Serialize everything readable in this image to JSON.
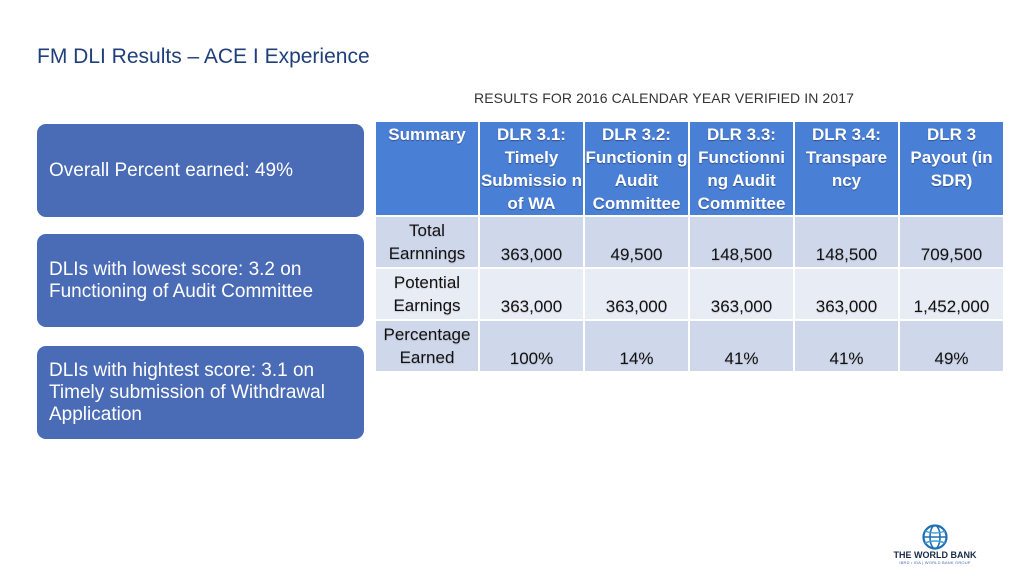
{
  "header": {
    "title": "FM DLI Results – ACE I Experience",
    "subtitle": "RESULTS FOR 2016 CALENDAR YEAR VERIFIED IN 2017"
  },
  "callouts": [
    "Overall Percent earned: 49%",
    "DLIs with lowest score: 3.2 on Functioning of Audit Committee",
    "DLIs with hightest score: 3.1 on Timely submission of Withdrawal Application"
  ],
  "table": {
    "headers": [
      "Summary",
      "DLR 3.1: Timely Submissio n of WA",
      "DLR 3.2: Functionin g Audit Committee",
      "DLR 3.3: Functionni ng Audit Committee",
      "DLR 3.4: Transpare ncy",
      "DLR 3 Payout (in SDR)"
    ],
    "rows": [
      {
        "label": "Total Earnnings",
        "values": [
          "363,000",
          "49,500",
          "148,500",
          "148,500",
          "709,500"
        ]
      },
      {
        "label": "Potential Earnings",
        "values": [
          "363,000",
          "363,000",
          "363,000",
          "363,000",
          "1,452,000"
        ]
      },
      {
        "label": "Percentage Earned",
        "values": [
          "100%",
          "14%",
          "41%",
          "41%",
          "49%"
        ]
      }
    ]
  },
  "logo": {
    "name": "THE WORLD BANK",
    "tagline": "IBRD • IDA | WORLD BANK GROUP",
    "icon": "globe-icon"
  },
  "colors": {
    "title": "#1f3f7a",
    "callout_bg": "#4a6bb5",
    "table_header": "#4a7fd6",
    "row_dark": "#cfd7ea",
    "row_light": "#e8ecf5"
  }
}
